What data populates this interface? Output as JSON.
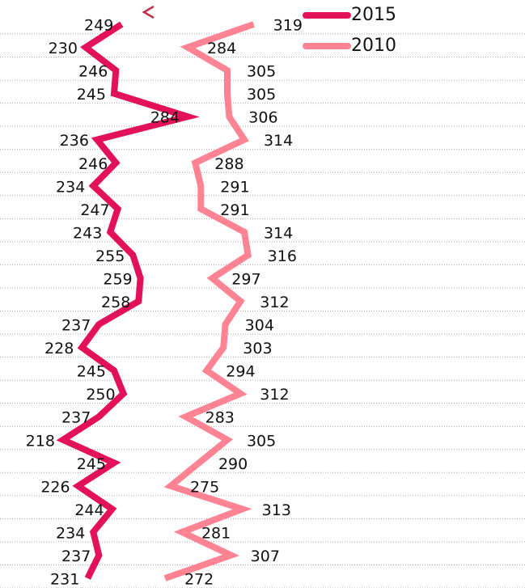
{
  "chart_data": {
    "type": "line",
    "orientation": "vertical",
    "series": [
      {
        "name": "2015",
        "color": "#e3105a",
        "values": [
          249,
          230,
          246,
          245,
          284,
          236,
          246,
          234,
          247,
          243,
          255,
          259,
          258,
          237,
          228,
          245,
          250,
          237,
          218,
          245,
          226,
          244,
          234,
          237,
          231
        ],
        "label_side": "left"
      },
      {
        "name": "2010",
        "color": "#ff8393",
        "values": [
          319,
          284,
          305,
          305,
          306,
          314,
          288,
          291,
          291,
          314,
          316,
          297,
          312,
          304,
          303,
          294,
          312,
          283,
          305,
          290,
          275,
          313,
          281,
          307,
          272
        ],
        "label_side": "right"
      }
    ],
    "xlim": [
      184.6,
      462.7
    ],
    "grid": true,
    "legend": "top-right"
  }
}
